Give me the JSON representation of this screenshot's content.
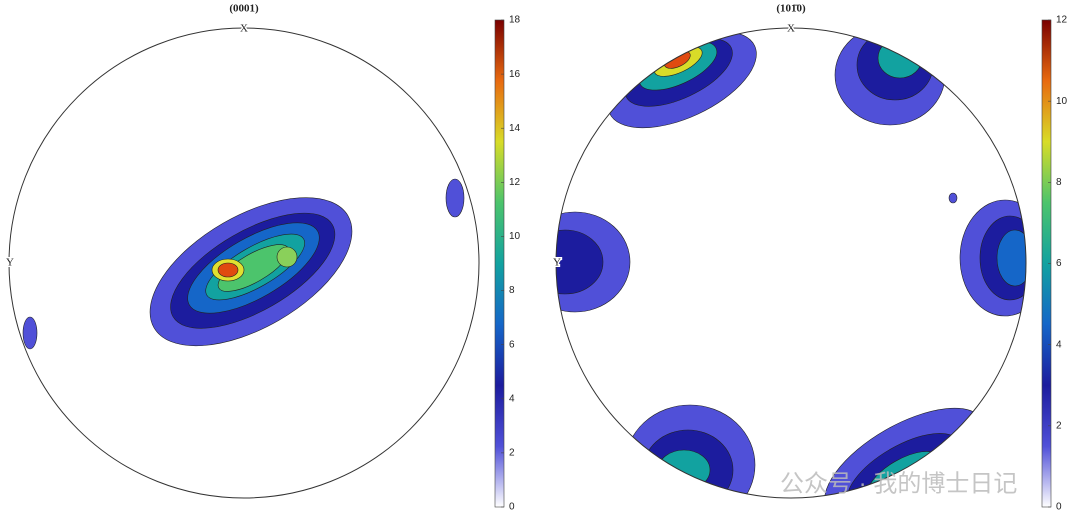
{
  "chart_data": [
    {
      "type": "pole_figure",
      "title": "(0001)",
      "x_label": "X",
      "y_label": "Y",
      "clim": [
        0,
        18
      ],
      "cticks": [
        0,
        2,
        4,
        6,
        8,
        10,
        12,
        14,
        16,
        18
      ],
      "colormap": [
        "#ffffff",
        "#5050d8",
        "#1c1c9e",
        "#1566c8",
        "#12a2a0",
        "#4cc46c",
        "#d8dc28",
        "#e86a10",
        "#7a0000"
      ]
    },
    {
      "type": "pole_figure",
      "title": "(101̄0)",
      "x_label": "X",
      "y_label": "Y",
      "clim": [
        0,
        12
      ],
      "cticks": [
        0,
        2,
        4,
        6,
        8,
        10,
        12
      ],
      "colormap": [
        "#ffffff",
        "#5050d8",
        "#1c1c9e",
        "#1566c8",
        "#12a2a0",
        "#4cc46c",
        "#d8dc28",
        "#e86a10",
        "#7a0000"
      ]
    }
  ],
  "watermark": "公众号 · 我的博士日记"
}
